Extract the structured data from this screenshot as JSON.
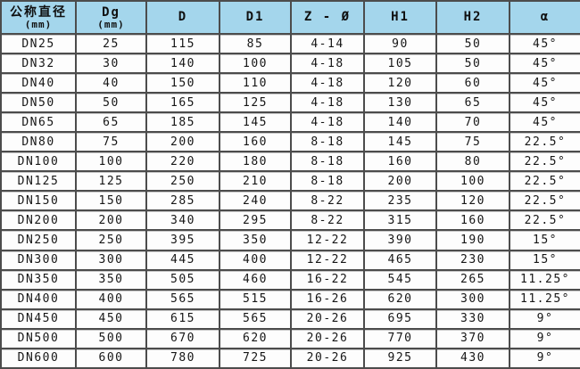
{
  "colors": {
    "header_bg": "#a4d6ec",
    "border": "#4c4c4c",
    "cell_bg": "#fdfdfd",
    "text": "#161616"
  },
  "table": {
    "headers": [
      {
        "label": "公称直径",
        "unit": "(mm)"
      },
      {
        "label": "Dg",
        "unit": "(mm)"
      },
      {
        "label": "D",
        "unit": ""
      },
      {
        "label": "D1",
        "unit": ""
      },
      {
        "label": "Z - Ø",
        "unit": ""
      },
      {
        "label": "H1",
        "unit": ""
      },
      {
        "label": "H2",
        "unit": ""
      },
      {
        "label": "α",
        "unit": ""
      }
    ]
  },
  "chart_data": {
    "type": "table",
    "title": "",
    "columns": [
      "公称直径(mm)",
      "Dg(mm)",
      "D",
      "D1",
      "Z-Ø",
      "H1",
      "H2",
      "α"
    ],
    "rows": [
      [
        "DN25",
        "25",
        "115",
        "85",
        "4-14",
        "90",
        "50",
        "45°"
      ],
      [
        "DN32",
        "30",
        "140",
        "100",
        "4-18",
        "105",
        "50",
        "45°"
      ],
      [
        "DN40",
        "40",
        "150",
        "110",
        "4-18",
        "120",
        "60",
        "45°"
      ],
      [
        "DN50",
        "50",
        "165",
        "125",
        "4-18",
        "130",
        "65",
        "45°"
      ],
      [
        "DN65",
        "65",
        "185",
        "145",
        "4-18",
        "140",
        "70",
        "45°"
      ],
      [
        "DN80",
        "75",
        "200",
        "160",
        "8-18",
        "145",
        "75",
        "22.5°"
      ],
      [
        "DN100",
        "100",
        "220",
        "180",
        "8-18",
        "160",
        "80",
        "22.5°"
      ],
      [
        "DN125",
        "125",
        "250",
        "210",
        "8-18",
        "200",
        "100",
        "22.5°"
      ],
      [
        "DN150",
        "150",
        "285",
        "240",
        "8-22",
        "235",
        "120",
        "22.5°"
      ],
      [
        "DN200",
        "200",
        "340",
        "295",
        "8-22",
        "315",
        "160",
        "22.5°"
      ],
      [
        "DN250",
        "250",
        "395",
        "350",
        "12-22",
        "390",
        "190",
        "15°"
      ],
      [
        "DN300",
        "300",
        "445",
        "400",
        "12-22",
        "465",
        "230",
        "15°"
      ],
      [
        "DN350",
        "350",
        "505",
        "460",
        "16-22",
        "545",
        "265",
        "11.25°"
      ],
      [
        "DN400",
        "400",
        "565",
        "515",
        "16-26",
        "620",
        "300",
        "11.25°"
      ],
      [
        "DN450",
        "450",
        "615",
        "565",
        "20-26",
        "695",
        "330",
        "9°"
      ],
      [
        "DN500",
        "500",
        "670",
        "620",
        "20-26",
        "770",
        "370",
        "9°"
      ],
      [
        "DN600",
        "600",
        "780",
        "725",
        "20-26",
        "925",
        "430",
        "9°"
      ]
    ]
  }
}
